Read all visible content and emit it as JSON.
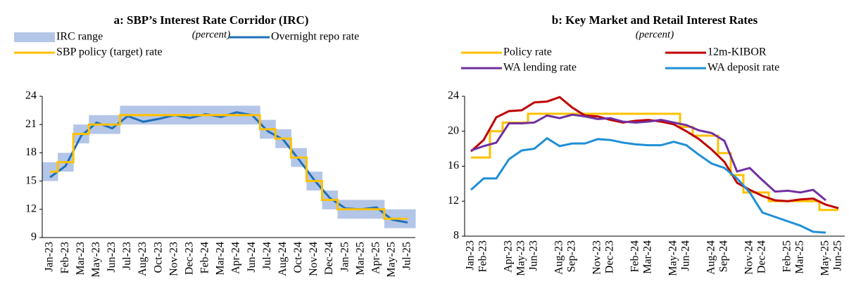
{
  "chart_data": [
    {
      "type": "line",
      "title": "a: SBP’s Interest Rate Corridor (IRC)",
      "subtitle": "(percent)",
      "categories": [
        "Jan-23",
        "Feb-23",
        "Mar-23",
        "May-23",
        "Jun-23",
        "Jul-23",
        "Aug-23",
        "Oct-23",
        "Nov-23",
        "Dec-23",
        "Feb-24",
        "Mar-24",
        "Apr-24",
        "Jun-24",
        "Jul-24",
        "Aug-24",
        "Oct-24",
        "Nov-24",
        "Dec-24",
        "Jan-25",
        "Mar-25",
        "Apr-25",
        "May-25",
        "Jul-25"
      ],
      "ylim": [
        9,
        24
      ],
      "yticks": [
        9,
        12,
        15,
        18,
        21,
        24
      ],
      "series": [
        {
          "name": "IRC range",
          "color": "#b4c6e7",
          "kind": "band",
          "low": [
            15,
            16,
            19,
            20,
            20,
            21,
            21,
            21,
            21,
            21,
            21,
            21,
            21,
            21,
            19.5,
            18.5,
            16.5,
            14,
            12,
            11,
            11,
            11,
            10,
            10
          ],
          "high": [
            17,
            18,
            21,
            22,
            22,
            23,
            23,
            23,
            23,
            23,
            23,
            23,
            23,
            23,
            21.5,
            20.5,
            18.5,
            16,
            14,
            13,
            13,
            13,
            12,
            12
          ]
        },
        {
          "name": "Overnight repo rate",
          "color": "#1f6fb8",
          "values": [
            15.4,
            16.6,
            19.8,
            21.2,
            20.6,
            21.9,
            21.3,
            21.6,
            22.0,
            21.7,
            22.1,
            21.8,
            22.3,
            22.0,
            20.3,
            19.4,
            17.3,
            15.1,
            13.2,
            12.1,
            12.0,
            12.2,
            10.9,
            10.6
          ]
        },
        {
          "name": "SBP policy (target) rate",
          "color": "#ffc000",
          "step": true,
          "values": [
            16,
            17,
            20,
            21,
            21,
            22,
            22,
            22,
            22,
            22,
            22,
            22,
            22,
            22,
            20.5,
            19.5,
            17.5,
            15,
            13,
            12,
            12,
            12,
            11,
            11
          ]
        }
      ]
    },
    {
      "type": "line",
      "title": "b: Key Market and Retail Interest Rates",
      "subtitle": "(percent)",
      "categories": [
        "Jan-23",
        "Feb-23",
        null,
        "Apr-23",
        "May-23",
        "Jun-23",
        null,
        "Aug-23",
        "Sep-23",
        null,
        "Nov-23",
        "Dec-23",
        null,
        "Feb-24",
        "Mar-24",
        null,
        "May-24",
        "Jun-24",
        null,
        "Aug-24",
        "Sep-24",
        null,
        "Nov-24",
        "Dec-24",
        null,
        "Feb-25",
        "Mar-25",
        null,
        "May-25",
        "Jun-25"
      ],
      "ylim": [
        8,
        24
      ],
      "yticks": [
        8,
        12,
        16,
        20,
        24
      ],
      "series": [
        {
          "name": "Policy rate",
          "color": "#ffc000",
          "step": true,
          "values": [
            17,
            17,
            20,
            21,
            21,
            22,
            22,
            22,
            22,
            22,
            22,
            22,
            22,
            22,
            22,
            22,
            22,
            20.5,
            19.5,
            19.5,
            17.5,
            15,
            13,
            13,
            12,
            12,
            12,
            12,
            11,
            11
          ]
        },
        {
          "name": "12m-KIBOR",
          "color": "#c00000",
          "values": [
            17.7,
            19.0,
            21.6,
            22.3,
            22.4,
            23.3,
            23.4,
            23.9,
            22.7,
            21.8,
            21.7,
            21.3,
            21.0,
            21.2,
            21.3,
            21.1,
            20.8,
            20.0,
            19.1,
            17.9,
            16.5,
            14.1,
            13.3,
            12.6,
            12.1,
            12.0,
            12.2,
            12.3,
            11.6,
            11.2
          ]
        },
        {
          "name": "WA lending rate",
          "color": "#7030a0",
          "values": [
            17.8,
            18.3,
            18.7,
            20.9,
            20.9,
            21.0,
            21.8,
            21.5,
            21.9,
            21.7,
            21.4,
            21.5,
            21.1,
            21.0,
            21.1,
            21.3,
            21.0,
            20.7,
            20.1,
            19.8,
            18.9,
            15.4,
            15.8,
            14.4,
            13.1,
            13.2,
            13.0,
            13.3,
            12.1,
            null
          ]
        },
        {
          "name": "WA deposit rate",
          "color": "#1f8fd6",
          "values": [
            13.3,
            14.6,
            14.6,
            16.8,
            17.8,
            18.0,
            19.2,
            18.3,
            18.6,
            18.6,
            19.1,
            19.0,
            18.7,
            18.5,
            18.4,
            18.4,
            18.8,
            18.4,
            17.3,
            16.3,
            15.8,
            14.6,
            13.0,
            10.7,
            10.2,
            9.7,
            9.2,
            8.5,
            8.4,
            null
          ]
        }
      ]
    }
  ]
}
